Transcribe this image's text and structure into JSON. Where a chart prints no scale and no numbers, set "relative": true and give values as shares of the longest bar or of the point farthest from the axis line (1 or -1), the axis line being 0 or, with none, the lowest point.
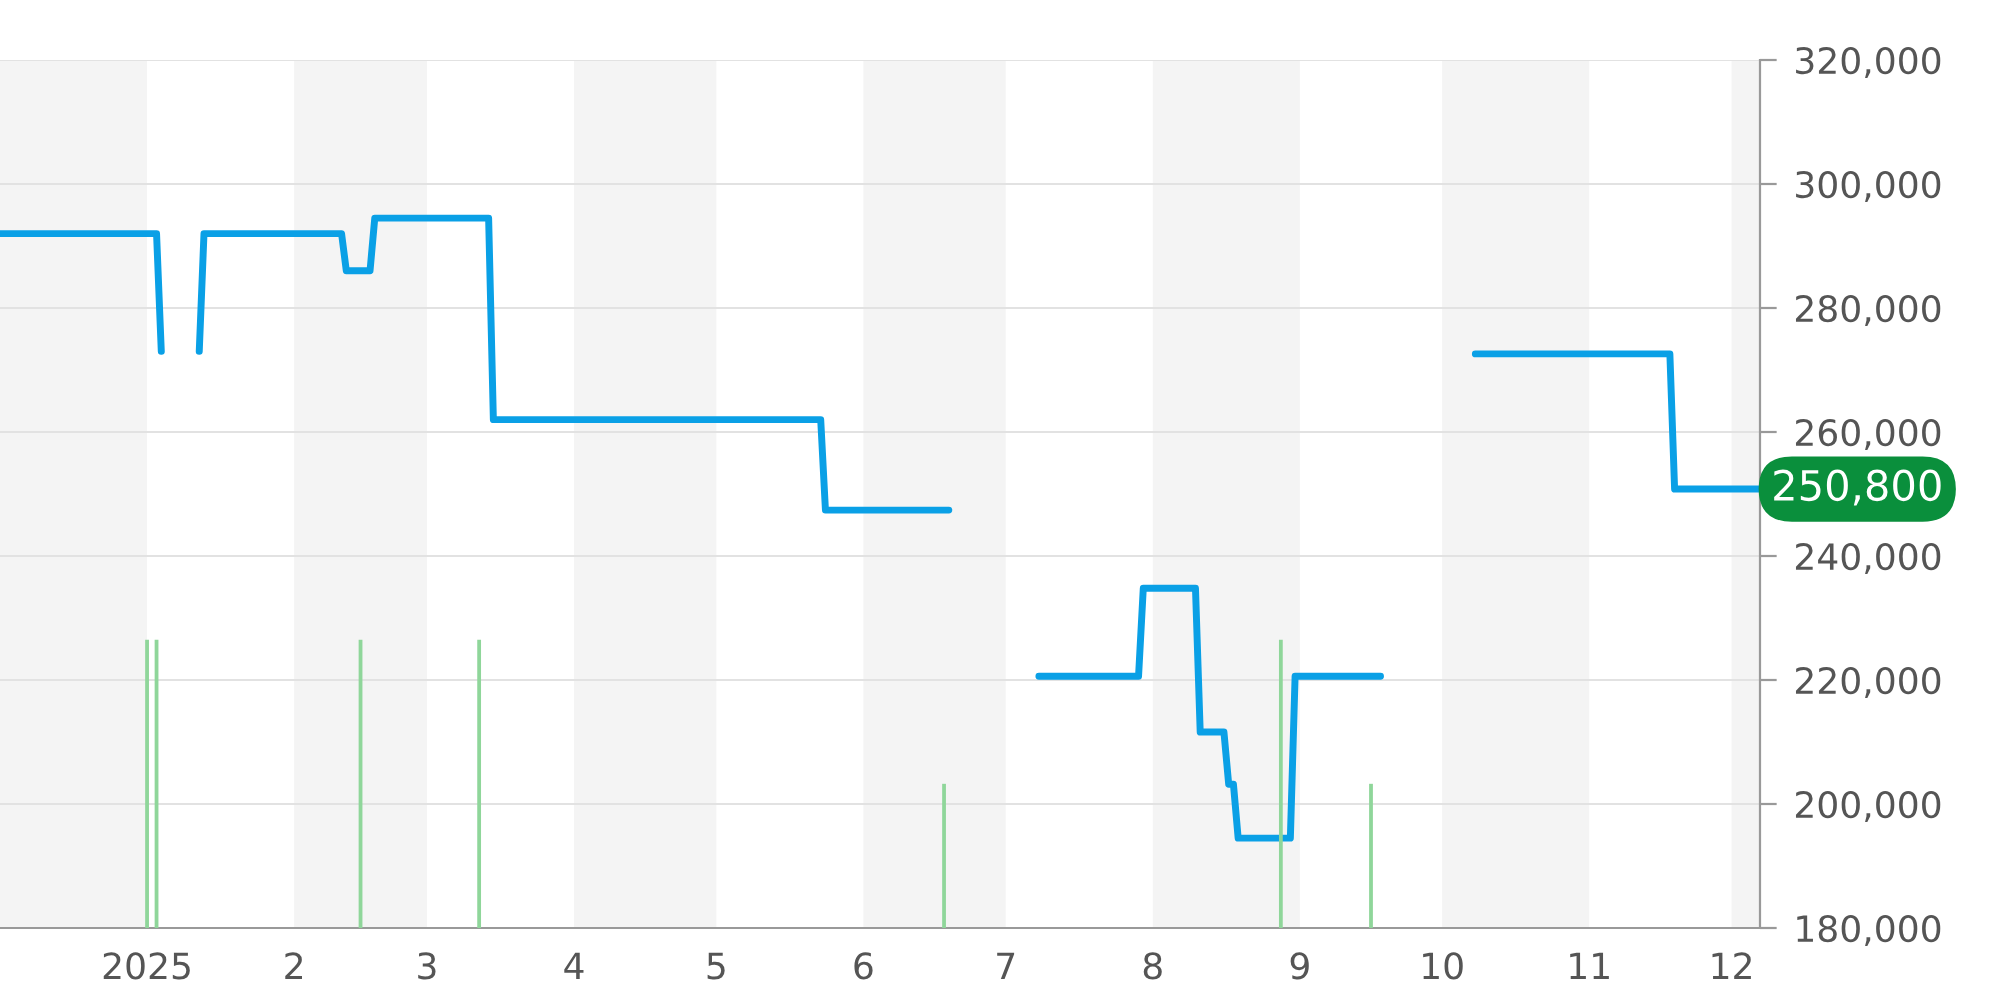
{
  "chart_data": [
    {
      "type": "line",
      "series": [
        {
          "color": "#0aa0e6",
          "x": [
            "2024-12-01",
            "2025-01-03",
            "2025-01-04",
            "2025-01-08",
            "2025-01-12",
            "2025-01-13",
            "2025-02-11",
            "2025-02-12",
            "2025-02-17",
            "2025-02-18",
            "2025-03-14",
            "2025-03-15",
            "2025-05-23",
            "2025-05-24",
            "2025-06-19",
            "2025-06-30",
            "2025-07-08",
            "2025-07-29",
            "2025-07-30",
            "2025-08-10",
            "2025-08-11",
            "2025-08-16",
            "2025-08-17",
            "2025-08-18",
            "2025-08-19",
            "2025-08-30",
            "2025-08-31",
            "2025-09-18",
            "2025-09-30",
            "2025-10-08",
            "2025-11-18",
            "2025-11-19",
            "2025-12-07"
          ],
          "values": [
            292000,
            292000,
            273000,
            null,
            273000,
            292000,
            292000,
            286000,
            286000,
            294500,
            294500,
            262000,
            262000,
            247400,
            247400,
            null,
            220600,
            220600,
            234800,
            234800,
            211600,
            211600,
            203200,
            203200,
            194500,
            194500,
            220600,
            220600,
            null,
            272600,
            272600,
            250800,
            250800
          ]
        }
      ],
      "xlim": [
        "2024-12-01",
        "2025-12-07"
      ],
      "xticks": [
        {
          "value": "2025-01-01",
          "label": "2025"
        },
        {
          "value": "2025-02-01",
          "label": "2"
        },
        {
          "value": "2025-03-01",
          "label": "3"
        },
        {
          "value": "2025-04-01",
          "label": "4"
        },
        {
          "value": "2025-05-01",
          "label": "5"
        },
        {
          "value": "2025-06-01",
          "label": "6"
        },
        {
          "value": "2025-07-01",
          "label": "7"
        },
        {
          "value": "2025-08-01",
          "label": "8"
        },
        {
          "value": "2025-09-01",
          "label": "9"
        },
        {
          "value": "2025-10-01",
          "label": "10"
        },
        {
          "value": "2025-11-01",
          "label": "11"
        },
        {
          "value": "2025-12-01",
          "label": "12"
        }
      ],
      "ylim": [
        180000,
        320000
      ],
      "yticks": [
        {
          "value": 180000,
          "label": "180,000"
        },
        {
          "value": 200000,
          "label": "200,000"
        },
        {
          "value": 220000,
          "label": "220,000"
        },
        {
          "value": 240000,
          "label": "240,000"
        },
        {
          "value": 260000,
          "label": "260,000"
        },
        {
          "value": 280000,
          "label": "280,000"
        },
        {
          "value": 300000,
          "label": "300,000"
        },
        {
          "value": 320000,
          "label": "320,000"
        }
      ],
      "grid": "y",
      "bands": [
        {
          "axis": "x",
          "from": "2024-12-01",
          "to": "2025-01-01",
          "color": "#f4f4f4"
        },
        {
          "axis": "x",
          "from": "2025-02-01",
          "to": "2025-03-01",
          "color": "#f4f4f4"
        },
        {
          "axis": "x",
          "from": "2025-04-01",
          "to": "2025-05-01",
          "color": "#f4f4f4"
        },
        {
          "axis": "x",
          "from": "2025-06-01",
          "to": "2025-07-01",
          "color": "#f4f4f4"
        },
        {
          "axis": "x",
          "from": "2025-08-01",
          "to": "2025-09-01",
          "color": "#f4f4f4"
        },
        {
          "axis": "x",
          "from": "2025-10-01",
          "to": "2025-11-01",
          "color": "#f4f4f4"
        },
        {
          "axis": "x",
          "from": "2025-12-01",
          "to": "2025-12-07",
          "color": "#f4f4f4"
        }
      ],
      "annotations": [
        {
          "text": "250,800",
          "x": "2025-12-07",
          "y": 250800
        }
      ]
    },
    {
      "type": "bar",
      "relative": true,
      "tick_labels": false,
      "color": "#8fd69a",
      "x": [
        "2025-01-01",
        "2025-01-03",
        "2025-02-15",
        "2025-03-12",
        "2025-06-18",
        "2025-08-28",
        "2025-09-16"
      ],
      "values": [
        1,
        1,
        1,
        1,
        0.5,
        1,
        0.5
      ],
      "xlim": [
        "2024-12-01",
        "2025-12-07"
      ]
    }
  ]
}
